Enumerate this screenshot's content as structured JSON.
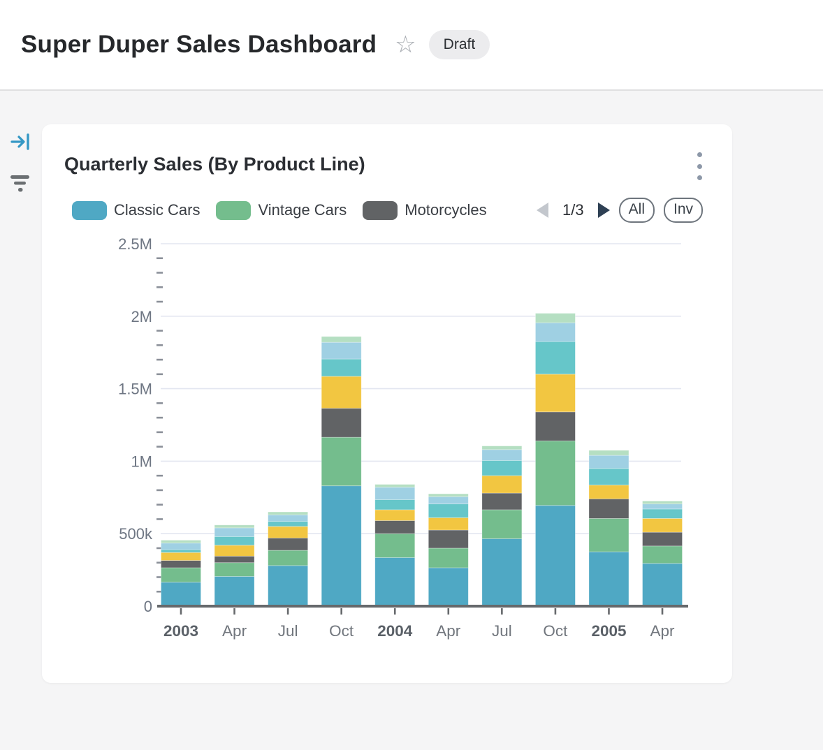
{
  "page": {
    "title": "Super Duper Sales Dashboard",
    "status_badge": "Draft"
  },
  "sidebar": {
    "icons": [
      {
        "name": "collapse-panel",
        "color": "#3598c5"
      },
      {
        "name": "filter",
        "color": "#6b6f72"
      }
    ]
  },
  "card": {
    "title": "Quarterly Sales (By Product Line)",
    "legend": {
      "items": [
        {
          "label": "Classic Cars",
          "color": "#4fa8c4"
        },
        {
          "label": "Vintage Cars",
          "color": "#74bd8d"
        },
        {
          "label": "Motorcycles",
          "color": "#616365"
        }
      ],
      "pagination": {
        "label": "1/3",
        "prev_enabled": false,
        "next_enabled": true
      },
      "buttons": [
        {
          "label": "All"
        },
        {
          "label": "Inv"
        }
      ]
    }
  },
  "chart_data": {
    "type": "bar",
    "stacked": true,
    "title": "Quarterly Sales (By Product Line)",
    "categories": [
      "2003",
      "Apr",
      "Jul",
      "Oct",
      "2004",
      "Apr",
      "Jul",
      "Oct",
      "2005",
      "Apr"
    ],
    "bold_category_indices": [
      0,
      4,
      8
    ],
    "series": [
      {
        "name": "Classic Cars",
        "color": "#4fa8c4",
        "legend_visible": true,
        "values": [
          165000,
          205000,
          280000,
          830000,
          335000,
          265000,
          465000,
          695000,
          375000,
          295000
        ]
      },
      {
        "name": "Vintage Cars",
        "color": "#74bd8d",
        "legend_visible": true,
        "values": [
          100000,
          95000,
          105000,
          335000,
          165000,
          135000,
          200000,
          445000,
          230000,
          120000
        ]
      },
      {
        "name": "Motorcycles",
        "color": "#616365",
        "legend_visible": true,
        "values": [
          50000,
          45000,
          85000,
          200000,
          90000,
          125000,
          115000,
          200000,
          135000,
          95000
        ]
      },
      {
        "name": "",
        "color": "#f2c641",
        "legend_visible": false,
        "values": [
          55000,
          75000,
          80000,
          220000,
          75000,
          85000,
          120000,
          260000,
          95000,
          95000
        ]
      },
      {
        "name": "",
        "color": "#66c6c9",
        "legend_visible": false,
        "values": [
          20000,
          60000,
          35000,
          120000,
          70000,
          95000,
          105000,
          225000,
          115000,
          65000
        ]
      },
      {
        "name": "",
        "color": "#9fd0e3",
        "legend_visible": false,
        "values": [
          45000,
          60000,
          45000,
          115000,
          85000,
          50000,
          75000,
          130000,
          90000,
          35000
        ]
      },
      {
        "name": "",
        "color": "#b5dfc2",
        "legend_visible": false,
        "values": [
          20000,
          20000,
          20000,
          40000,
          20000,
          20000,
          25000,
          65000,
          35000,
          20000
        ]
      }
    ],
    "ylim": [
      0,
      2500000
    ],
    "yticks": [
      {
        "value": 0,
        "label": "0"
      },
      {
        "value": 500000,
        "label": "500k"
      },
      {
        "value": 1000000,
        "label": "1M"
      },
      {
        "value": 1500000,
        "label": "1.5M"
      },
      {
        "value": 2000000,
        "label": "2M"
      },
      {
        "value": 2500000,
        "label": "2.5M"
      }
    ],
    "minor_tick_step": 100000,
    "grid": true,
    "legend_position": "top"
  }
}
